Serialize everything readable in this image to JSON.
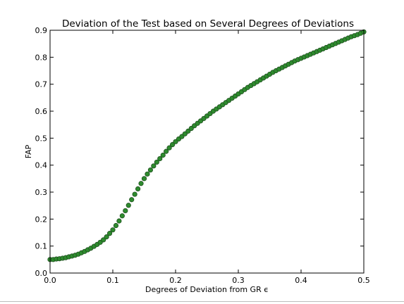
{
  "chart_data": {
    "type": "scatter",
    "title": "Deviation of the Test based on Several Degrees of Deviations",
    "xlabel": "Degrees of Deviation from GR ϵ",
    "ylabel": "FAP",
    "xlim": [
      0.0,
      0.5
    ],
    "ylim": [
      0.0,
      0.9
    ],
    "x_tick_labels": [
      "0.0",
      "0.1",
      "0.2",
      "0.3",
      "0.4",
      "0.5"
    ],
    "y_tick_labels": [
      "0.0",
      "0.1",
      "0.2",
      "0.3",
      "0.4",
      "0.5",
      "0.6",
      "0.7",
      "0.8",
      "0.9"
    ],
    "grid": false,
    "marker_color": "#2e8b2e",
    "marker_edge_color": "#1f4f1f",
    "points": [
      [
        0.0,
        0.05
      ],
      [
        0.005,
        0.05
      ],
      [
        0.01,
        0.052
      ],
      [
        0.015,
        0.053
      ],
      [
        0.02,
        0.055
      ],
      [
        0.025,
        0.057
      ],
      [
        0.03,
        0.06
      ],
      [
        0.035,
        0.063
      ],
      [
        0.04,
        0.066
      ],
      [
        0.045,
        0.07
      ],
      [
        0.05,
        0.075
      ],
      [
        0.055,
        0.08
      ],
      [
        0.06,
        0.086
      ],
      [
        0.065,
        0.092
      ],
      [
        0.07,
        0.099
      ],
      [
        0.075,
        0.106
      ],
      [
        0.08,
        0.114
      ],
      [
        0.085,
        0.123
      ],
      [
        0.09,
        0.134
      ],
      [
        0.095,
        0.147
      ],
      [
        0.1,
        0.16
      ],
      [
        0.105,
        0.176
      ],
      [
        0.11,
        0.193
      ],
      [
        0.115,
        0.212
      ],
      [
        0.12,
        0.231
      ],
      [
        0.125,
        0.251
      ],
      [
        0.13,
        0.272
      ],
      [
        0.135,
        0.292
      ],
      [
        0.14,
        0.312
      ],
      [
        0.145,
        0.332
      ],
      [
        0.15,
        0.35
      ],
      [
        0.155,
        0.367
      ],
      [
        0.16,
        0.382
      ],
      [
        0.165,
        0.397
      ],
      [
        0.17,
        0.411
      ],
      [
        0.175,
        0.424
      ],
      [
        0.18,
        0.437
      ],
      [
        0.185,
        0.451
      ],
      [
        0.19,
        0.464
      ],
      [
        0.195,
        0.476
      ],
      [
        0.2,
        0.487
      ],
      [
        0.205,
        0.497
      ],
      [
        0.21,
        0.506
      ],
      [
        0.215,
        0.516
      ],
      [
        0.22,
        0.526
      ],
      [
        0.225,
        0.536
      ],
      [
        0.23,
        0.546
      ],
      [
        0.235,
        0.555
      ],
      [
        0.24,
        0.564
      ],
      [
        0.245,
        0.573
      ],
      [
        0.25,
        0.582
      ],
      [
        0.255,
        0.591
      ],
      [
        0.26,
        0.6
      ],
      [
        0.265,
        0.608
      ],
      [
        0.27,
        0.616
      ],
      [
        0.275,
        0.624
      ],
      [
        0.28,
        0.632
      ],
      [
        0.285,
        0.64
      ],
      [
        0.29,
        0.648
      ],
      [
        0.295,
        0.656
      ],
      [
        0.3,
        0.664
      ],
      [
        0.305,
        0.672
      ],
      [
        0.31,
        0.68
      ],
      [
        0.315,
        0.688
      ],
      [
        0.32,
        0.695
      ],
      [
        0.325,
        0.702
      ],
      [
        0.33,
        0.709
      ],
      [
        0.335,
        0.716
      ],
      [
        0.34,
        0.723
      ],
      [
        0.345,
        0.73
      ],
      [
        0.35,
        0.737
      ],
      [
        0.355,
        0.744
      ],
      [
        0.36,
        0.75
      ],
      [
        0.365,
        0.756
      ],
      [
        0.37,
        0.762
      ],
      [
        0.375,
        0.768
      ],
      [
        0.38,
        0.774
      ],
      [
        0.385,
        0.78
      ],
      [
        0.39,
        0.786
      ],
      [
        0.395,
        0.791
      ],
      [
        0.4,
        0.796
      ],
      [
        0.405,
        0.801
      ],
      [
        0.41,
        0.806
      ],
      [
        0.415,
        0.811
      ],
      [
        0.42,
        0.816
      ],
      [
        0.425,
        0.821
      ],
      [
        0.43,
        0.826
      ],
      [
        0.435,
        0.831
      ],
      [
        0.44,
        0.836
      ],
      [
        0.445,
        0.841
      ],
      [
        0.45,
        0.846
      ],
      [
        0.455,
        0.851
      ],
      [
        0.46,
        0.856
      ],
      [
        0.465,
        0.861
      ],
      [
        0.47,
        0.866
      ],
      [
        0.475,
        0.871
      ],
      [
        0.48,
        0.876
      ],
      [
        0.485,
        0.88
      ],
      [
        0.49,
        0.884
      ],
      [
        0.495,
        0.889
      ],
      [
        0.5,
        0.894
      ]
    ]
  }
}
